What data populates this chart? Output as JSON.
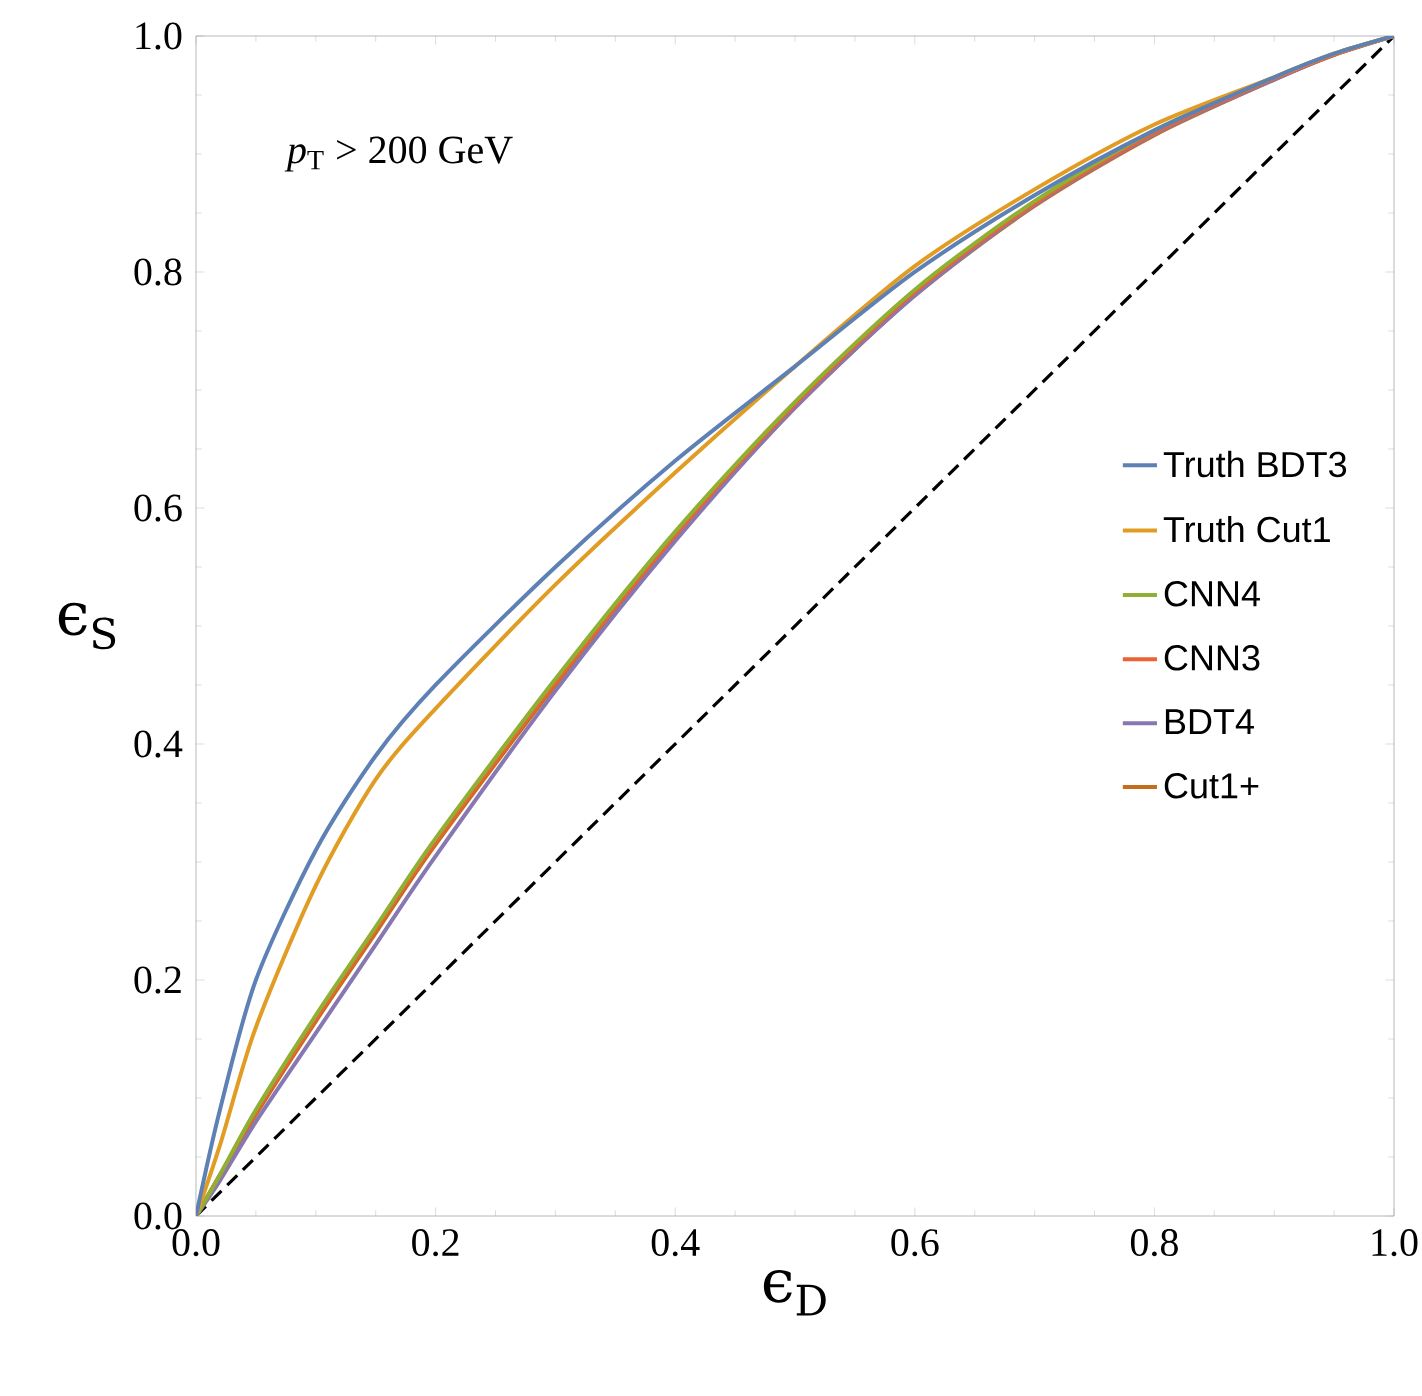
{
  "chart_data": {
    "type": "line",
    "xlabel": "ϵ$_{D}$",
    "ylabel": "ϵ$_{S}$",
    "annotations": [
      "*p*$_{T}$ > 200 GeV"
    ],
    "x": [
      0,
      0.02,
      0.05,
      0.1,
      0.15,
      0.2,
      0.3,
      0.4,
      0.5,
      0.6,
      0.7,
      0.8,
      0.9,
      0.95,
      1
    ],
    "xlim": [
      0,
      1
    ],
    "ylim": [
      0,
      1
    ],
    "xticks": [
      {
        "value": 0,
        "label": "0.0"
      },
      0.2,
      0.4,
      0.6,
      0.8,
      {
        "value": 1,
        "label": "1.0"
      }
    ],
    "yticks": [
      {
        "value": 0,
        "label": "0.0"
      },
      0.2,
      0.4,
      0.6,
      0.8,
      {
        "value": 1,
        "label": "1.0"
      }
    ],
    "legend": "right",
    "grid": false,
    "series": [
      {
        "name": "Truth BDT3",
        "color": "#5e81b5",
        "values": [
          0,
          0.09,
          0.2,
          0.31,
          0.39,
          0.45,
          0.55,
          0.64,
          0.72,
          0.8,
          0.865,
          0.92,
          0.965,
          0.985,
          1
        ]
      },
      {
        "name": "Truth Cut1",
        "color": "#e19c24",
        "values": [
          0,
          0.06,
          0.16,
          0.28,
          0.37,
          0.43,
          0.535,
          0.63,
          0.72,
          0.805,
          0.87,
          0.925,
          0.965,
          0.985,
          1
        ]
      },
      {
        "name": "CNN4",
        "color": "#8fb032",
        "values": [
          0,
          0.035,
          0.09,
          0.17,
          0.245,
          0.32,
          0.455,
          0.58,
          0.69,
          0.785,
          0.86,
          0.92,
          0.965,
          0.985,
          1
        ]
      },
      {
        "name": "CNN3",
        "color": "#eb6235",
        "values": [
          0,
          0.035,
          0.088,
          0.167,
          0.243,
          0.317,
          0.452,
          0.577,
          0.688,
          0.783,
          0.858,
          0.918,
          0.964,
          0.984,
          1
        ]
      },
      {
        "name": "BDT4",
        "color": "#8778b3",
        "values": [
          0,
          0.03,
          0.08,
          0.155,
          0.23,
          0.305,
          0.445,
          0.572,
          0.685,
          0.78,
          0.857,
          0.917,
          0.963,
          0.984,
          1
        ]
      },
      {
        "name": "Cut1+",
        "color": "#c56e1a",
        "values": [
          0,
          0.034,
          0.086,
          0.165,
          0.24,
          0.315,
          0.45,
          0.575,
          0.685,
          0.78,
          0.856,
          0.916,
          0.963,
          0.984,
          1
        ]
      },
      {
        "color": "#000000",
        "line_style": "dashed",
        "x": [
          0,
          1
        ],
        "values": [
          0,
          1
        ]
      }
    ]
  }
}
